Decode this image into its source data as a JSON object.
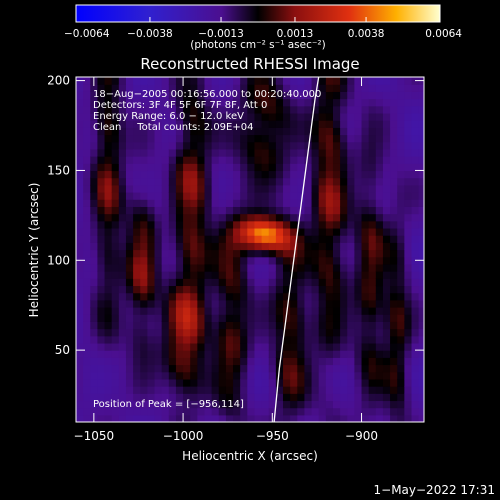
{
  "chart_data": {
    "type": "heatmap",
    "title": "Reconstructed RHESSI Image",
    "xlabel": "Heliocentric X (arcsec)",
    "ylabel": "Heliocentric Y (arcsec)",
    "xlim": [
      -1060,
      -865
    ],
    "ylim": [
      10,
      202
    ],
    "x_ticks": [
      {
        "value": -1050,
        "label": "−1050"
      },
      {
        "value": -1000,
        "label": "−1000"
      },
      {
        "value": -950,
        "label": "−950"
      },
      {
        "value": -900,
        "label": "−900"
      }
    ],
    "y_ticks": [
      {
        "value": 50,
        "label": "50"
      },
      {
        "value": 100,
        "label": "100"
      },
      {
        "value": 150,
        "label": "150"
      },
      {
        "value": 200,
        "label": "200"
      }
    ],
    "colorbar": {
      "range": [
        -0.0064,
        0.0064
      ],
      "ticks": [
        {
          "value": -0.0064,
          "label": "−0.0064"
        },
        {
          "value": -0.0038,
          "label": "−0.0038"
        },
        {
          "value": -0.0013,
          "label": "−0.0013"
        },
        {
          "value": 0.0013,
          "label": "0.0013"
        },
        {
          "value": 0.0038,
          "label": "0.0038"
        },
        {
          "value": 0.0064,
          "label": "0.0064"
        }
      ],
      "unit_label": "(photons cm⁻² s⁻¹ asec⁻²)"
    },
    "annotations": [
      "18−Aug−2005 00:16:56.000 to 00:20:40.000",
      "Detectors: 3F 4F 5F 6F 7F 8F, Att 0",
      "Energy Range: 6.0 − 12.0 keV",
      "Clean     Total counts: 2.09E+04"
    ],
    "peak_label": "Position of Peak = [−956,114]",
    "peak_position": [
      -956,
      114
    ],
    "limb_points": [
      [
        -949,
        10
      ],
      [
        -946,
        40
      ],
      [
        -942,
        70
      ],
      [
        -938,
        100
      ],
      [
        -934,
        130
      ],
      [
        -930,
        160
      ],
      [
        -926,
        190
      ],
      [
        -924,
        202
      ]
    ],
    "features": [
      {
        "x": -1042,
        "y": 150,
        "sx": 6,
        "sy": 60,
        "amp": 0.0026
      },
      {
        "x": -1023,
        "y": 95,
        "sx": 6,
        "sy": 30,
        "amp": 0.003
      },
      {
        "x": -995,
        "y": 135,
        "sx": 7,
        "sy": 55,
        "amp": 0.003
      },
      {
        "x": -1000,
        "y": 55,
        "sx": 8,
        "sy": 22,
        "amp": 0.003
      },
      {
        "x": -973,
        "y": 65,
        "sx": 7,
        "sy": 38,
        "amp": 0.0026
      },
      {
        "x": -956,
        "y": 114,
        "sx": 11,
        "sy": 7,
        "amp": 0.0064
      },
      {
        "x": -955,
        "y": 175,
        "sx": 10,
        "sy": 22,
        "amp": 0.0028
      },
      {
        "x": -940,
        "y": 60,
        "sx": 7,
        "sy": 40,
        "amp": 0.0026
      },
      {
        "x": -918,
        "y": 140,
        "sx": 7,
        "sy": 65,
        "amp": 0.003
      },
      {
        "x": -895,
        "y": 90,
        "sx": 6,
        "sy": 50,
        "amp": 0.0024
      },
      {
        "x": -880,
        "y": 60,
        "sx": 5,
        "sy": 45,
        "amp": 0.0022
      }
    ]
  },
  "timestamp": "1−May−2022 17:31"
}
